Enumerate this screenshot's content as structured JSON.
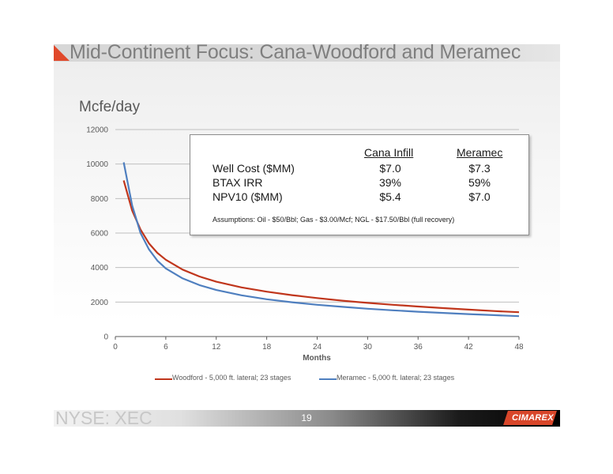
{
  "slide": {
    "title": "Mid-Continent Focus: Cana-Woodford and Meramec",
    "unit_label": "Mcfe/day",
    "footer_ticker": "NYSE: XEC",
    "page_number": "19",
    "logo_text": "CIMAREX"
  },
  "colors": {
    "accent": "#e0482a",
    "woodford": "#c0361c",
    "meramec": "#4f7fbf",
    "gridline": "#bfbfbf",
    "axis_line": "#595959"
  },
  "info_box": {
    "headers": [
      "Cana Infill",
      "Meramec"
    ],
    "rows": [
      {
        "label": "Well Cost ($MM)",
        "values": [
          "$7.0",
          "$7.3"
        ]
      },
      {
        "label": "BTAX IRR",
        "values": [
          "39%",
          "59%"
        ]
      },
      {
        "label": "NPV10 ($MM)",
        "values": [
          "$5.4",
          "$7.0"
        ]
      }
    ],
    "assumptions": "Assumptions:  Oil - $50/Bbl; Gas - $3.00/Mcf; NGL - $17.50/Bbl (full recovery)"
  },
  "chart_data": {
    "type": "line",
    "title": "",
    "xlabel": "Months",
    "ylabel": "Mcfe/day",
    "xlim": [
      0,
      48
    ],
    "ylim": [
      0,
      12000
    ],
    "x_ticks": [
      0,
      6,
      12,
      18,
      24,
      30,
      36,
      42,
      48
    ],
    "y_ticks": [
      0,
      2000,
      4000,
      6000,
      8000,
      10000,
      12000
    ],
    "y_tick_labels": [
      "0",
      "2000",
      "4000",
      "6000",
      "8000",
      "10000",
      "12000"
    ],
    "grid": true,
    "legend_position": "bottom",
    "x": [
      1,
      2,
      3,
      4,
      5,
      6,
      8,
      10,
      12,
      15,
      18,
      21,
      24,
      27,
      30,
      33,
      36,
      39,
      42,
      45,
      48
    ],
    "series": [
      {
        "name": "Woodford - 5,000 ft. lateral; 23 stages",
        "values": [
          9050,
          7300,
          6200,
          5400,
          4850,
          4450,
          3880,
          3480,
          3180,
          2850,
          2600,
          2400,
          2230,
          2080,
          1950,
          1840,
          1740,
          1650,
          1560,
          1480,
          1410
        ]
      },
      {
        "name": "Meramec - 5,000 ft. lateral; 23 stages",
        "values": [
          10100,
          7600,
          6000,
          5050,
          4400,
          3950,
          3370,
          2980,
          2700,
          2390,
          2160,
          1990,
          1840,
          1720,
          1610,
          1520,
          1440,
          1370,
          1300,
          1240,
          1180
        ]
      }
    ]
  }
}
